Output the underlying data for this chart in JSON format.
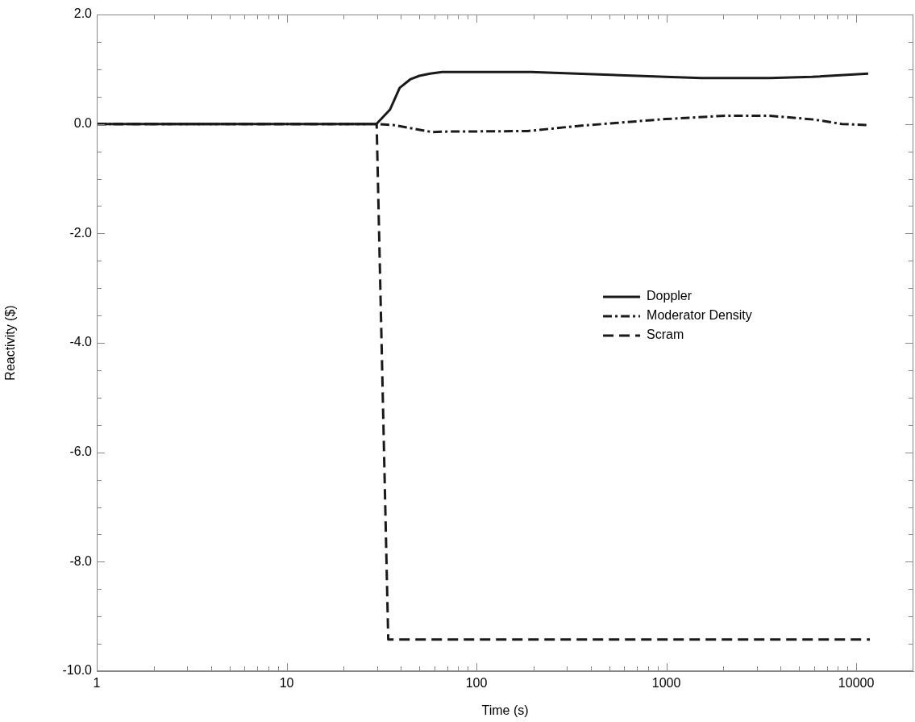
{
  "chart_data": {
    "type": "line",
    "xlabel": "Time (s)",
    "ylabel": "Reactivity ($)",
    "log": "x",
    "grid": false,
    "legend": "right",
    "xlim": [
      1,
      20000
    ],
    "ylim": [
      -10,
      2
    ],
    "xticks": [
      1,
      {
        "value": 2,
        "label": null
      },
      {
        "value": 3,
        "label": null
      },
      {
        "value": 4,
        "label": null
      },
      {
        "value": 5,
        "label": null
      },
      {
        "value": 6,
        "label": null
      },
      {
        "value": 7,
        "label": null
      },
      {
        "value": 8,
        "label": null
      },
      {
        "value": 9,
        "label": null
      },
      10,
      {
        "value": 20,
        "label": null
      },
      {
        "value": 30,
        "label": null
      },
      {
        "value": 40,
        "label": null
      },
      {
        "value": 50,
        "label": null
      },
      {
        "value": 60,
        "label": null
      },
      {
        "value": 70,
        "label": null
      },
      {
        "value": 80,
        "label": null
      },
      {
        "value": 90,
        "label": null
      },
      100,
      {
        "value": 200,
        "label": null
      },
      {
        "value": 300,
        "label": null
      },
      {
        "value": 400,
        "label": null
      },
      {
        "value": 500,
        "label": null
      },
      {
        "value": 600,
        "label": null
      },
      {
        "value": 700,
        "label": null
      },
      {
        "value": 800,
        "label": null
      },
      {
        "value": 900,
        "label": null
      },
      1000,
      {
        "value": 2000,
        "label": null
      },
      {
        "value": 3000,
        "label": null
      },
      {
        "value": 4000,
        "label": null
      },
      {
        "value": 5000,
        "label": null
      },
      {
        "value": 6000,
        "label": null
      },
      {
        "value": 7000,
        "label": null
      },
      {
        "value": 8000,
        "label": null
      },
      {
        "value": 9000,
        "label": null
      },
      10000
    ],
    "yticks": [
      {
        "value": 2,
        "label": "2.0"
      },
      {
        "value": 1.5,
        "label": null
      },
      {
        "value": 1,
        "label": null
      },
      {
        "value": 0.5,
        "label": null
      },
      {
        "value": 0,
        "label": "0.0"
      },
      {
        "value": -0.5,
        "label": null
      },
      {
        "value": -1,
        "label": null
      },
      {
        "value": -1.5,
        "label": null
      },
      {
        "value": -2,
        "label": "-2.0"
      },
      {
        "value": -2.5,
        "label": null
      },
      {
        "value": -3,
        "label": null
      },
      {
        "value": -3.5,
        "label": null
      },
      {
        "value": -4,
        "label": "-4.0"
      },
      {
        "value": -4.5,
        "label": null
      },
      {
        "value": -5,
        "label": null
      },
      {
        "value": -5.5,
        "label": null
      },
      {
        "value": -6,
        "label": "-6.0"
      },
      {
        "value": -6.5,
        "label": null
      },
      {
        "value": -7,
        "label": null
      },
      {
        "value": -7.5,
        "label": null
      },
      {
        "value": -8,
        "label": "-8.0"
      },
      {
        "value": -8.5,
        "label": null
      },
      {
        "value": -9,
        "label": null
      },
      {
        "value": -9.5,
        "label": null
      },
      {
        "value": -10,
        "label": "-10.0"
      }
    ],
    "series": [
      {
        "name": "Doppler",
        "color": "#1a1a1a",
        "line_style": "solid",
        "x": [
          1,
          10,
          29.7,
          35,
          39.4,
          45,
          50,
          57,
          66,
          194,
          991,
          1535,
          3500,
          5860,
          11560
        ],
        "values": [
          0,
          0,
          0,
          0.26,
          0.66,
          0.82,
          0.88,
          0.92,
          0.95,
          0.95,
          0.86,
          0.84,
          0.84,
          0.86,
          0.92
        ]
      },
      {
        "name": "Moderator Density",
        "color": "#1a1a1a",
        "line_style": "dashdot",
        "x": [
          1,
          10,
          29.7,
          36.5,
          59,
          65,
          186,
          333,
          991,
          2032,
          3500,
          6040,
          8400,
          11560
        ],
        "values": [
          0,
          0,
          0,
          -0.02,
          -0.15,
          -0.14,
          -0.13,
          -0.04,
          0.09,
          0.15,
          0.15,
          0.08,
          0,
          -0.02
        ]
      },
      {
        "name": "Scram",
        "color": "#1a1a1a",
        "line_style": "dashed",
        "x": [
          1,
          10,
          29.8,
          34.3,
          11800
        ],
        "values": [
          0,
          0,
          0,
          -9.42,
          -9.42
        ]
      }
    ]
  }
}
